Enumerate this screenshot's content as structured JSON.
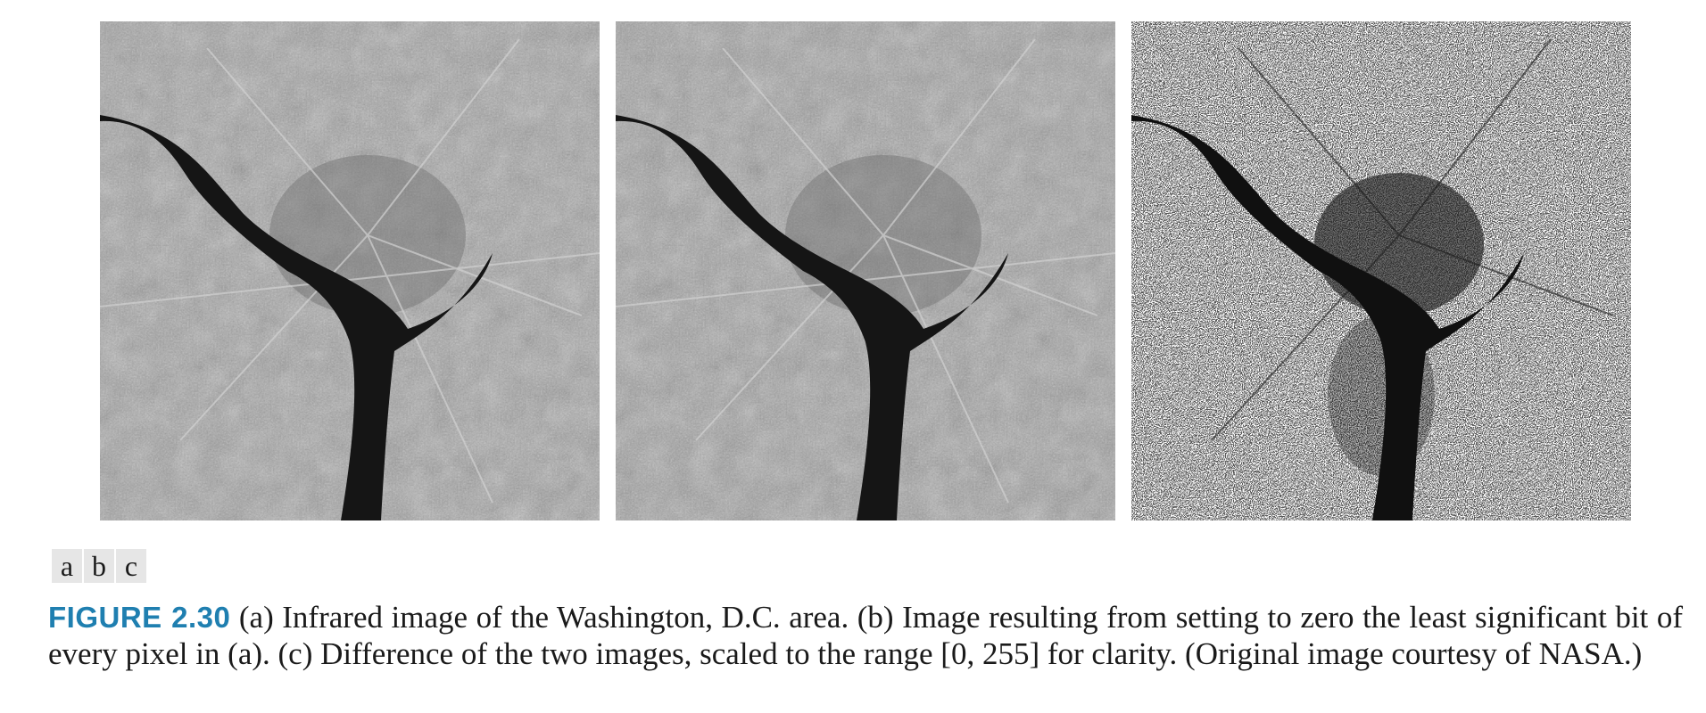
{
  "figure": {
    "panel_letters": [
      "a",
      "b",
      "c"
    ],
    "label": "FIGURE 2.30",
    "caption_text": " (a) Infrared image of the Washington, D.C. area. (b) Image resulting from setting to zero the least significant bit of every pixel in (a). (c) Difference of the two images, scaled to the range [0, 255] for clarity. (Original image courtesy of NASA.)"
  },
  "colors": {
    "label_blue": "#1f7fb0",
    "letter_box_bg": "#e6e6e6"
  }
}
